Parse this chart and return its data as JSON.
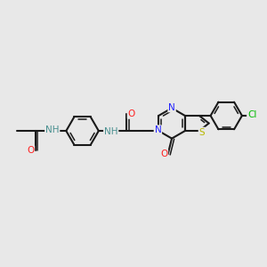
{
  "bg_color": "#e8e8e8",
  "bond_color": "#1a1a1a",
  "bond_width": 1.5,
  "atom_colors": {
    "N": "#2020ff",
    "O": "#ff2020",
    "S": "#b8b800",
    "Cl": "#00bb00",
    "H_color": "#4a9090",
    "C": "#1a1a1a"
  },
  "font_size": 7.5
}
